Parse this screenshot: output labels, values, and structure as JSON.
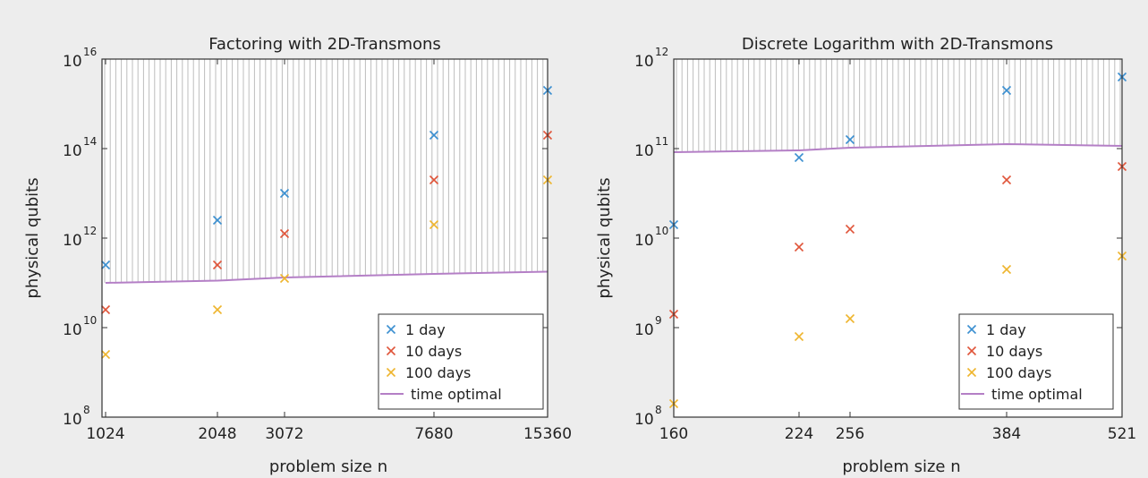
{
  "colors": {
    "page_background": "#ededed",
    "plot_background": "#ffffff",
    "hatch": "#bdbdbd",
    "series_1_day": "#3b8fd0",
    "series_10_days": "#e0553a",
    "series_100_days": "#eeb52e",
    "time_optimal": "#b47fc6"
  },
  "chart_data": [
    {
      "type": "scatter",
      "title": "Factoring with 2D-Transmons",
      "xlabel": "problem size n",
      "ylabel": "physical qubits",
      "yscale": "log",
      "ylim_exponent": [
        8,
        16
      ],
      "ytick_exponents": [
        8,
        10,
        12,
        14,
        16
      ],
      "x_tick_labels": [
        "1024",
        "2048",
        "3072",
        "7680",
        "15360"
      ],
      "grid": false,
      "hatched_region": "above time optimal line",
      "legend_position": "lower-right",
      "series": [
        {
          "name": "1 day",
          "marker": "x",
          "log10_values": [
            11.4,
            12.4,
            13.0,
            14.3,
            15.3
          ]
        },
        {
          "name": "10 days",
          "marker": "x",
          "log10_values": [
            10.4,
            11.4,
            12.1,
            13.3,
            14.3
          ]
        },
        {
          "name": "100 days",
          "marker": "x",
          "log10_values": [
            9.4,
            10.4,
            11.1,
            12.3,
            13.3
          ]
        },
        {
          "name": "time optimal",
          "marker": "line",
          "log10_values": [
            11.0,
            11.05,
            11.12,
            11.2,
            11.25
          ]
        }
      ],
      "legend": [
        "1 day",
        "10 days",
        "100 days",
        "time optimal"
      ]
    },
    {
      "type": "scatter",
      "title": "Discrete Logarithm with 2D-Transmons",
      "xlabel": "problem size n",
      "ylabel": "physical qubits",
      "yscale": "log",
      "ylim_exponent": [
        8,
        12
      ],
      "ytick_exponents": [
        8,
        9,
        10,
        11,
        12
      ],
      "x_tick_labels": [
        "160",
        "224",
        "256",
        "384",
        "521"
      ],
      "grid": false,
      "hatched_region": "above time optimal line",
      "legend_position": "lower-right",
      "series": [
        {
          "name": "1 day",
          "marker": "x",
          "log10_values": [
            10.15,
            10.9,
            11.1,
            11.65,
            11.8
          ]
        },
        {
          "name": "10 days",
          "marker": "x",
          "log10_values": [
            9.15,
            9.9,
            10.1,
            10.65,
            10.8
          ]
        },
        {
          "name": "100 days",
          "marker": "x",
          "log10_values": [
            8.15,
            8.9,
            9.1,
            9.65,
            9.8
          ]
        },
        {
          "name": "time optimal",
          "marker": "line",
          "log10_values": [
            10.96,
            10.98,
            11.01,
            11.05,
            11.03
          ]
        }
      ],
      "legend": [
        "1 day",
        "10 days",
        "100 days",
        "time optimal"
      ]
    }
  ]
}
